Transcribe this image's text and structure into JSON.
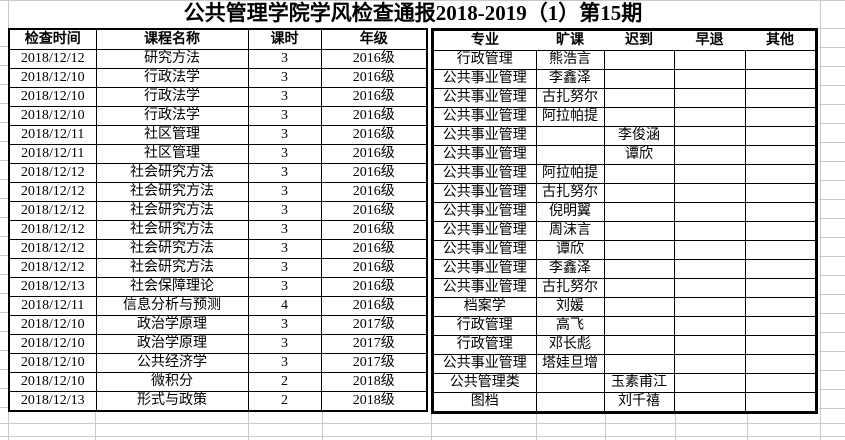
{
  "title": "公共管理学院学风检查通报2018-2019（1）第15期",
  "table": {
    "headers": {
      "date": "检查时间",
      "course": "课程名称",
      "hours": "课时",
      "grade": "年级",
      "major": "专业",
      "absent": "旷课",
      "late": "迟到",
      "early": "早退",
      "other": "其他"
    },
    "rows": [
      [
        "2018/12/12",
        "研究方法",
        "3",
        "2016级",
        "行政管理",
        "熊浩言",
        "",
        "",
        ""
      ],
      [
        "2018/12/10",
        "行政法学",
        "3",
        "2016级",
        "公共事业管理",
        "李鑫泽",
        "",
        "",
        ""
      ],
      [
        "2018/12/10",
        "行政法学",
        "3",
        "2016级",
        "公共事业管理",
        "古扎努尔",
        "",
        "",
        ""
      ],
      [
        "2018/12/10",
        "行政法学",
        "3",
        "2016级",
        "公共事业管理",
        "阿拉帕提",
        "",
        "",
        ""
      ],
      [
        "2018/12/11",
        "社区管理",
        "3",
        "2016级",
        "公共事业管理",
        "",
        "李俊涵",
        "",
        ""
      ],
      [
        "2018/12/11",
        "社区管理",
        "3",
        "2016级",
        "公共事业管理",
        "",
        "谭欣",
        "",
        ""
      ],
      [
        "2018/12/12",
        "社会研究方法",
        "3",
        "2016级",
        "公共事业管理",
        "阿拉帕提",
        "",
        "",
        ""
      ],
      [
        "2018/12/12",
        "社会研究方法",
        "3",
        "2016级",
        "公共事业管理",
        "古扎努尔",
        "",
        "",
        ""
      ],
      [
        "2018/12/12",
        "社会研究方法",
        "3",
        "2016级",
        "公共事业管理",
        "倪明翼",
        "",
        "",
        ""
      ],
      [
        "2018/12/12",
        "社会研究方法",
        "3",
        "2016级",
        "公共事业管理",
        "周沫言",
        "",
        "",
        ""
      ],
      [
        "2018/12/12",
        "社会研究方法",
        "3",
        "2016级",
        "公共事业管理",
        "谭欣",
        "",
        "",
        ""
      ],
      [
        "2018/12/12",
        "社会研究方法",
        "3",
        "2016级",
        "公共事业管理",
        "李鑫泽",
        "",
        "",
        ""
      ],
      [
        "2018/12/13",
        "社会保障理论",
        "3",
        "2016级",
        "公共事业管理",
        "古扎努尔",
        "",
        "",
        ""
      ],
      [
        "2018/12/11",
        "信息分析与预测",
        "4",
        "2016级",
        "档案学",
        "刘媛",
        "",
        "",
        ""
      ],
      [
        "2018/12/10",
        "政治学原理",
        "3",
        "2017级",
        "行政管理",
        "高飞",
        "",
        "",
        ""
      ],
      [
        "2018/12/10",
        "政治学原理",
        "3",
        "2017级",
        "行政管理",
        "邓长彪",
        "",
        "",
        ""
      ],
      [
        "2018/12/10",
        "公共经济学",
        "3",
        "2017级",
        "公共事业管理",
        "塔娃旦增",
        "",
        "",
        ""
      ],
      [
        "2018/12/10",
        "微积分",
        "2",
        "2018级",
        "公共管理类",
        "",
        "玉素甫江",
        "",
        ""
      ],
      [
        "2018/12/13",
        "形式与政策",
        "2",
        "2018级",
        "图档",
        "",
        "刘千禧",
        "",
        ""
      ]
    ]
  },
  "colors": {
    "background": "#ffffff",
    "text": "#000000",
    "table_border": "#000000",
    "gridline": "#c9c9c9"
  }
}
